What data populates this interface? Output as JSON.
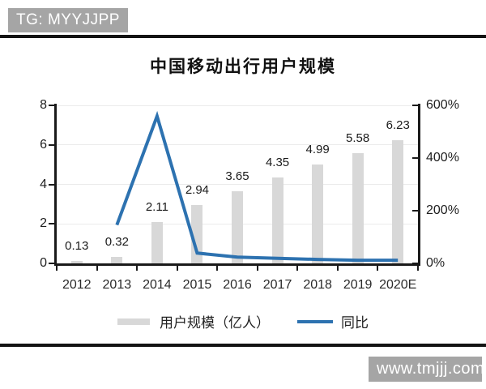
{
  "header": {
    "badge": "TG: MYYJJPP"
  },
  "footer": {
    "badge": "www.tmjjj.com"
  },
  "ui": {
    "badge_bg": "#a5a5a5",
    "badge_text": "#ffffff",
    "divider_color": "#141414"
  },
  "chart_data": {
    "type": "bar",
    "subtype": "bar+line combo, dual axis",
    "title": "中国移动出行用户规模",
    "categories": [
      "2012",
      "2013",
      "2014",
      "2015",
      "2016",
      "2017",
      "2018",
      "2019",
      "2020E"
    ],
    "series": [
      {
        "name": "用户规模（亿人）",
        "type": "bar",
        "axis": "left",
        "values": [
          0.13,
          0.32,
          2.11,
          2.94,
          3.65,
          4.35,
          4.99,
          5.58,
          6.23
        ],
        "labels": [
          "0.13",
          "0.32",
          "2.11",
          "2.94",
          "3.65",
          "4.35",
          "4.99",
          "5.58",
          "6.23"
        ],
        "color": "#d8d8d8"
      },
      {
        "name": "同比",
        "type": "line",
        "axis": "right",
        "values_pct": [
          null,
          146,
          559,
          39,
          24,
          19,
          15,
          12,
          12
        ],
        "color": "#2d72b0"
      }
    ],
    "left_axis": {
      "min": 0,
      "max": 8,
      "tick_values": [
        0,
        2,
        4,
        6,
        8
      ],
      "tick_labels": [
        "0",
        "2",
        "4",
        "6",
        "8"
      ]
    },
    "right_axis": {
      "min": 0,
      "max": 600,
      "tick_values": [
        0,
        200,
        400,
        600
      ],
      "tick_labels": [
        "0%",
        "200%",
        "400%",
        "600%"
      ]
    },
    "grid": "horizontal, at left-axis ticks",
    "legend": [
      {
        "label": "用户规模（亿人）",
        "swatch": "bar"
      },
      {
        "label": "同比",
        "swatch": "line"
      }
    ],
    "colors": {
      "bar": "#d8d8d8",
      "line": "#2d72b0",
      "axis": "#1a1a1a",
      "grid": "#ebebeb",
      "label": "#1b1b1b"
    }
  }
}
